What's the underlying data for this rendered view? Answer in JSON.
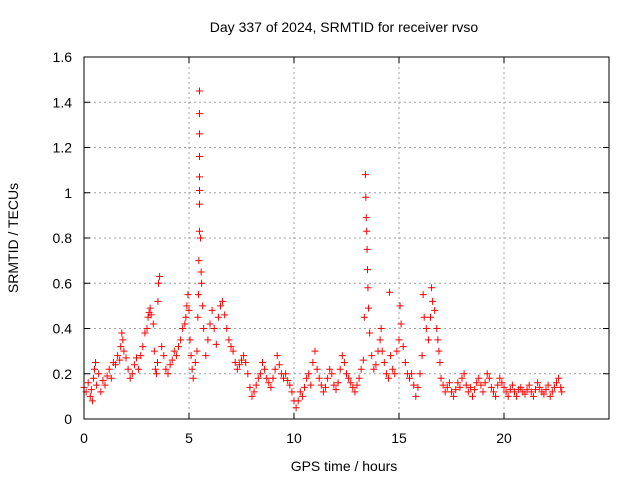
{
  "chart_data": {
    "type": "scatter",
    "title": "Day 337 of 2024, SRMTID for receiver rvso",
    "xlabel": "GPS time / hours",
    "ylabel": "SRMTID / TECUs",
    "xlim": [
      0,
      25
    ],
    "ylim": [
      0,
      1.6
    ],
    "xticks": [
      0,
      5,
      10,
      15,
      20
    ],
    "xtick_labels": [
      "0",
      "5",
      "10",
      "15",
      "20"
    ],
    "yticks": [
      0,
      0.2,
      0.4,
      0.6,
      0.8,
      1,
      1.2,
      1.4,
      1.6
    ],
    "ytick_labels": [
      "0",
      "0.2",
      "0.4",
      "0.6",
      "0.8",
      "1",
      "1.2",
      "1.4",
      "1.6"
    ],
    "grid": true,
    "marker": "+",
    "series": [
      {
        "name": "SRMTID",
        "color": "#ff0000",
        "points": [
          [
            0.0,
            0.14
          ],
          [
            0.1,
            0.12
          ],
          [
            0.2,
            0.16
          ],
          [
            0.3,
            0.1
          ],
          [
            0.35,
            0.13
          ],
          [
            0.4,
            0.08
          ],
          [
            0.45,
            0.18
          ],
          [
            0.5,
            0.22
          ],
          [
            0.55,
            0.25
          ],
          [
            0.6,
            0.15
          ],
          [
            0.7,
            0.2
          ],
          [
            0.8,
            0.12
          ],
          [
            0.9,
            0.17
          ],
          [
            1.0,
            0.15
          ],
          [
            1.1,
            0.19
          ],
          [
            1.2,
            0.22
          ],
          [
            1.3,
            0.18
          ],
          [
            1.4,
            0.25
          ],
          [
            1.5,
            0.24
          ],
          [
            1.6,
            0.28
          ],
          [
            1.7,
            0.26
          ],
          [
            1.75,
            0.32
          ],
          [
            1.8,
            0.38
          ],
          [
            1.85,
            0.35
          ],
          [
            1.9,
            0.3
          ],
          [
            2.0,
            0.27
          ],
          [
            2.1,
            0.22
          ],
          [
            2.2,
            0.18
          ],
          [
            2.3,
            0.2
          ],
          [
            2.4,
            0.24
          ],
          [
            2.5,
            0.27
          ],
          [
            2.6,
            0.22
          ],
          [
            2.7,
            0.28
          ],
          [
            2.8,
            0.32
          ],
          [
            2.9,
            0.38
          ],
          [
            3.0,
            0.4
          ],
          [
            3.05,
            0.45
          ],
          [
            3.1,
            0.47
          ],
          [
            3.15,
            0.49
          ],
          [
            3.2,
            0.46
          ],
          [
            3.3,
            0.42
          ],
          [
            3.35,
            0.3
          ],
          [
            3.4,
            0.22
          ],
          [
            3.45,
            0.2
          ],
          [
            3.5,
            0.25
          ],
          [
            3.52,
            0.52
          ],
          [
            3.55,
            0.6
          ],
          [
            3.6,
            0.63
          ],
          [
            3.7,
            0.32
          ],
          [
            3.8,
            0.28
          ],
          [
            3.9,
            0.22
          ],
          [
            4.0,
            0.2
          ],
          [
            4.1,
            0.24
          ],
          [
            4.2,
            0.26
          ],
          [
            4.3,
            0.3
          ],
          [
            4.4,
            0.28
          ],
          [
            4.5,
            0.32
          ],
          [
            4.6,
            0.35
          ],
          [
            4.7,
            0.4
          ],
          [
            4.8,
            0.42
          ],
          [
            4.85,
            0.45
          ],
          [
            4.9,
            0.5
          ],
          [
            4.95,
            0.55
          ],
          [
            5.0,
            0.48
          ],
          [
            5.05,
            0.35
          ],
          [
            5.1,
            0.28
          ],
          [
            5.15,
            0.22
          ],
          [
            5.2,
            0.18
          ],
          [
            5.3,
            0.25
          ],
          [
            5.38,
            0.3
          ],
          [
            5.42,
            0.45
          ],
          [
            5.45,
            0.55
          ],
          [
            5.47,
            0.7
          ],
          [
            5.5,
            0.83
          ],
          [
            5.5,
            0.95
          ],
          [
            5.5,
            1.01
          ],
          [
            5.5,
            1.07
          ],
          [
            5.5,
            1.16
          ],
          [
            5.5,
            1.26
          ],
          [
            5.5,
            1.35
          ],
          [
            5.5,
            1.45
          ],
          [
            5.55,
            0.8
          ],
          [
            5.58,
            0.65
          ],
          [
            5.6,
            0.6
          ],
          [
            5.65,
            0.5
          ],
          [
            5.7,
            0.4
          ],
          [
            5.8,
            0.28
          ],
          [
            5.9,
            0.35
          ],
          [
            6.0,
            0.42
          ],
          [
            6.1,
            0.48
          ],
          [
            6.2,
            0.4
          ],
          [
            6.3,
            0.33
          ],
          [
            6.4,
            0.45
          ],
          [
            6.5,
            0.5
          ],
          [
            6.6,
            0.52
          ],
          [
            6.7,
            0.46
          ],
          [
            6.8,
            0.4
          ],
          [
            6.9,
            0.35
          ],
          [
            7.0,
            0.32
          ],
          [
            7.1,
            0.3
          ],
          [
            7.2,
            0.25
          ],
          [
            7.3,
            0.22
          ],
          [
            7.4,
            0.24
          ],
          [
            7.5,
            0.26
          ],
          [
            7.6,
            0.28
          ],
          [
            7.7,
            0.25
          ],
          [
            7.8,
            0.2
          ],
          [
            7.9,
            0.14
          ],
          [
            8.0,
            0.1
          ],
          [
            8.1,
            0.12
          ],
          [
            8.2,
            0.15
          ],
          [
            8.3,
            0.18
          ],
          [
            8.4,
            0.2
          ],
          [
            8.5,
            0.25
          ],
          [
            8.6,
            0.22
          ],
          [
            8.7,
            0.18
          ],
          [
            8.8,
            0.16
          ],
          [
            8.9,
            0.14
          ],
          [
            9.0,
            0.18
          ],
          [
            9.1,
            0.22
          ],
          [
            9.2,
            0.28
          ],
          [
            9.3,
            0.24
          ],
          [
            9.4,
            0.2
          ],
          [
            9.5,
            0.18
          ],
          [
            9.6,
            0.2
          ],
          [
            9.7,
            0.17
          ],
          [
            9.8,
            0.15
          ],
          [
            9.9,
            0.12
          ],
          [
            10.0,
            0.08
          ],
          [
            10.1,
            0.05
          ],
          [
            10.2,
            0.08
          ],
          [
            10.3,
            0.12
          ],
          [
            10.4,
            0.1
          ],
          [
            10.5,
            0.14
          ],
          [
            10.6,
            0.18
          ],
          [
            10.7,
            0.2
          ],
          [
            10.8,
            0.15
          ],
          [
            10.9,
            0.25
          ],
          [
            11.0,
            0.3
          ],
          [
            11.1,
            0.22
          ],
          [
            11.2,
            0.18
          ],
          [
            11.3,
            0.15
          ],
          [
            11.4,
            0.12
          ],
          [
            11.5,
            0.14
          ],
          [
            11.6,
            0.18
          ],
          [
            11.7,
            0.22
          ],
          [
            11.8,
            0.2
          ],
          [
            11.9,
            0.15
          ],
          [
            12.0,
            0.13
          ],
          [
            12.1,
            0.16
          ],
          [
            12.2,
            0.22
          ],
          [
            12.3,
            0.28
          ],
          [
            12.4,
            0.25
          ],
          [
            12.5,
            0.2
          ],
          [
            12.6,
            0.18
          ],
          [
            12.7,
            0.16
          ],
          [
            12.8,
            0.14
          ],
          [
            12.9,
            0.12
          ],
          [
            13.0,
            0.15
          ],
          [
            13.1,
            0.18
          ],
          [
            13.2,
            0.22
          ],
          [
            13.3,
            0.26
          ],
          [
            13.35,
            0.45
          ],
          [
            13.4,
            1.08
          ],
          [
            13.42,
            0.98
          ],
          [
            13.44,
            0.89
          ],
          [
            13.46,
            0.83
          ],
          [
            13.48,
            0.75
          ],
          [
            13.5,
            0.66
          ],
          [
            13.52,
            0.58
          ],
          [
            13.55,
            0.49
          ],
          [
            13.6,
            0.38
          ],
          [
            13.7,
            0.28
          ],
          [
            13.8,
            0.22
          ],
          [
            13.9,
            0.24
          ],
          [
            14.0,
            0.3
          ],
          [
            14.1,
            0.35
          ],
          [
            14.15,
            0.4
          ],
          [
            14.2,
            0.3
          ],
          [
            14.3,
            0.25
          ],
          [
            14.4,
            0.2
          ],
          [
            14.5,
            0.18
          ],
          [
            14.55,
            0.56
          ],
          [
            14.6,
            0.28
          ],
          [
            14.7,
            0.22
          ],
          [
            14.8,
            0.2
          ],
          [
            14.9,
            0.3
          ],
          [
            15.0,
            0.35
          ],
          [
            15.05,
            0.5
          ],
          [
            15.1,
            0.42
          ],
          [
            15.2,
            0.32
          ],
          [
            15.3,
            0.25
          ],
          [
            15.4,
            0.2
          ],
          [
            15.5,
            0.18
          ],
          [
            15.6,
            0.2
          ],
          [
            15.7,
            0.15
          ],
          [
            15.8,
            0.1
          ],
          [
            15.9,
            0.14
          ],
          [
            16.0,
            0.2
          ],
          [
            16.1,
            0.28
          ],
          [
            16.15,
            0.55
          ],
          [
            16.2,
            0.45
          ],
          [
            16.3,
            0.4
          ],
          [
            16.4,
            0.35
          ],
          [
            16.5,
            0.45
          ],
          [
            16.55,
            0.58
          ],
          [
            16.6,
            0.52
          ],
          [
            16.7,
            0.48
          ],
          [
            16.8,
            0.4
          ],
          [
            16.85,
            0.35
          ],
          [
            16.9,
            0.3
          ],
          [
            16.95,
            0.25
          ],
          [
            17.0,
            0.18
          ],
          [
            17.1,
            0.15
          ],
          [
            17.2,
            0.12
          ],
          [
            17.3,
            0.14
          ],
          [
            17.4,
            0.16
          ],
          [
            17.5,
            0.12
          ],
          [
            17.6,
            0.1
          ],
          [
            17.7,
            0.13
          ],
          [
            17.8,
            0.16
          ],
          [
            17.9,
            0.14
          ],
          [
            18.0,
            0.18
          ],
          [
            18.1,
            0.2
          ],
          [
            18.2,
            0.15
          ],
          [
            18.3,
            0.12
          ],
          [
            18.4,
            0.14
          ],
          [
            18.5,
            0.1
          ],
          [
            18.6,
            0.13
          ],
          [
            18.7,
            0.16
          ],
          [
            18.8,
            0.18
          ],
          [
            18.9,
            0.15
          ],
          [
            19.0,
            0.12
          ],
          [
            19.1,
            0.16
          ],
          [
            19.2,
            0.2
          ],
          [
            19.3,
            0.18
          ],
          [
            19.4,
            0.14
          ],
          [
            19.5,
            0.12
          ],
          [
            19.6,
            0.1
          ],
          [
            19.7,
            0.15
          ],
          [
            19.8,
            0.18
          ],
          [
            19.9,
            0.16
          ],
          [
            20.0,
            0.14
          ],
          [
            20.1,
            0.12
          ],
          [
            20.2,
            0.1
          ],
          [
            20.3,
            0.13
          ],
          [
            20.4,
            0.15
          ],
          [
            20.5,
            0.12
          ],
          [
            20.6,
            0.1
          ],
          [
            20.7,
            0.13
          ],
          [
            20.8,
            0.14
          ],
          [
            20.9,
            0.12
          ],
          [
            21.0,
            0.11
          ],
          [
            21.1,
            0.13
          ],
          [
            21.2,
            0.15
          ],
          [
            21.3,
            0.12
          ],
          [
            21.4,
            0.1
          ],
          [
            21.5,
            0.13
          ],
          [
            21.6,
            0.16
          ],
          [
            21.7,
            0.14
          ],
          [
            21.8,
            0.12
          ],
          [
            21.9,
            0.11
          ],
          [
            22.0,
            0.13
          ],
          [
            22.1,
            0.15
          ],
          [
            22.2,
            0.1
          ],
          [
            22.3,
            0.12
          ],
          [
            22.4,
            0.14
          ],
          [
            22.5,
            0.16
          ],
          [
            22.6,
            0.18
          ],
          [
            22.7,
            0.14
          ],
          [
            22.75,
            0.12
          ]
        ]
      }
    ]
  }
}
